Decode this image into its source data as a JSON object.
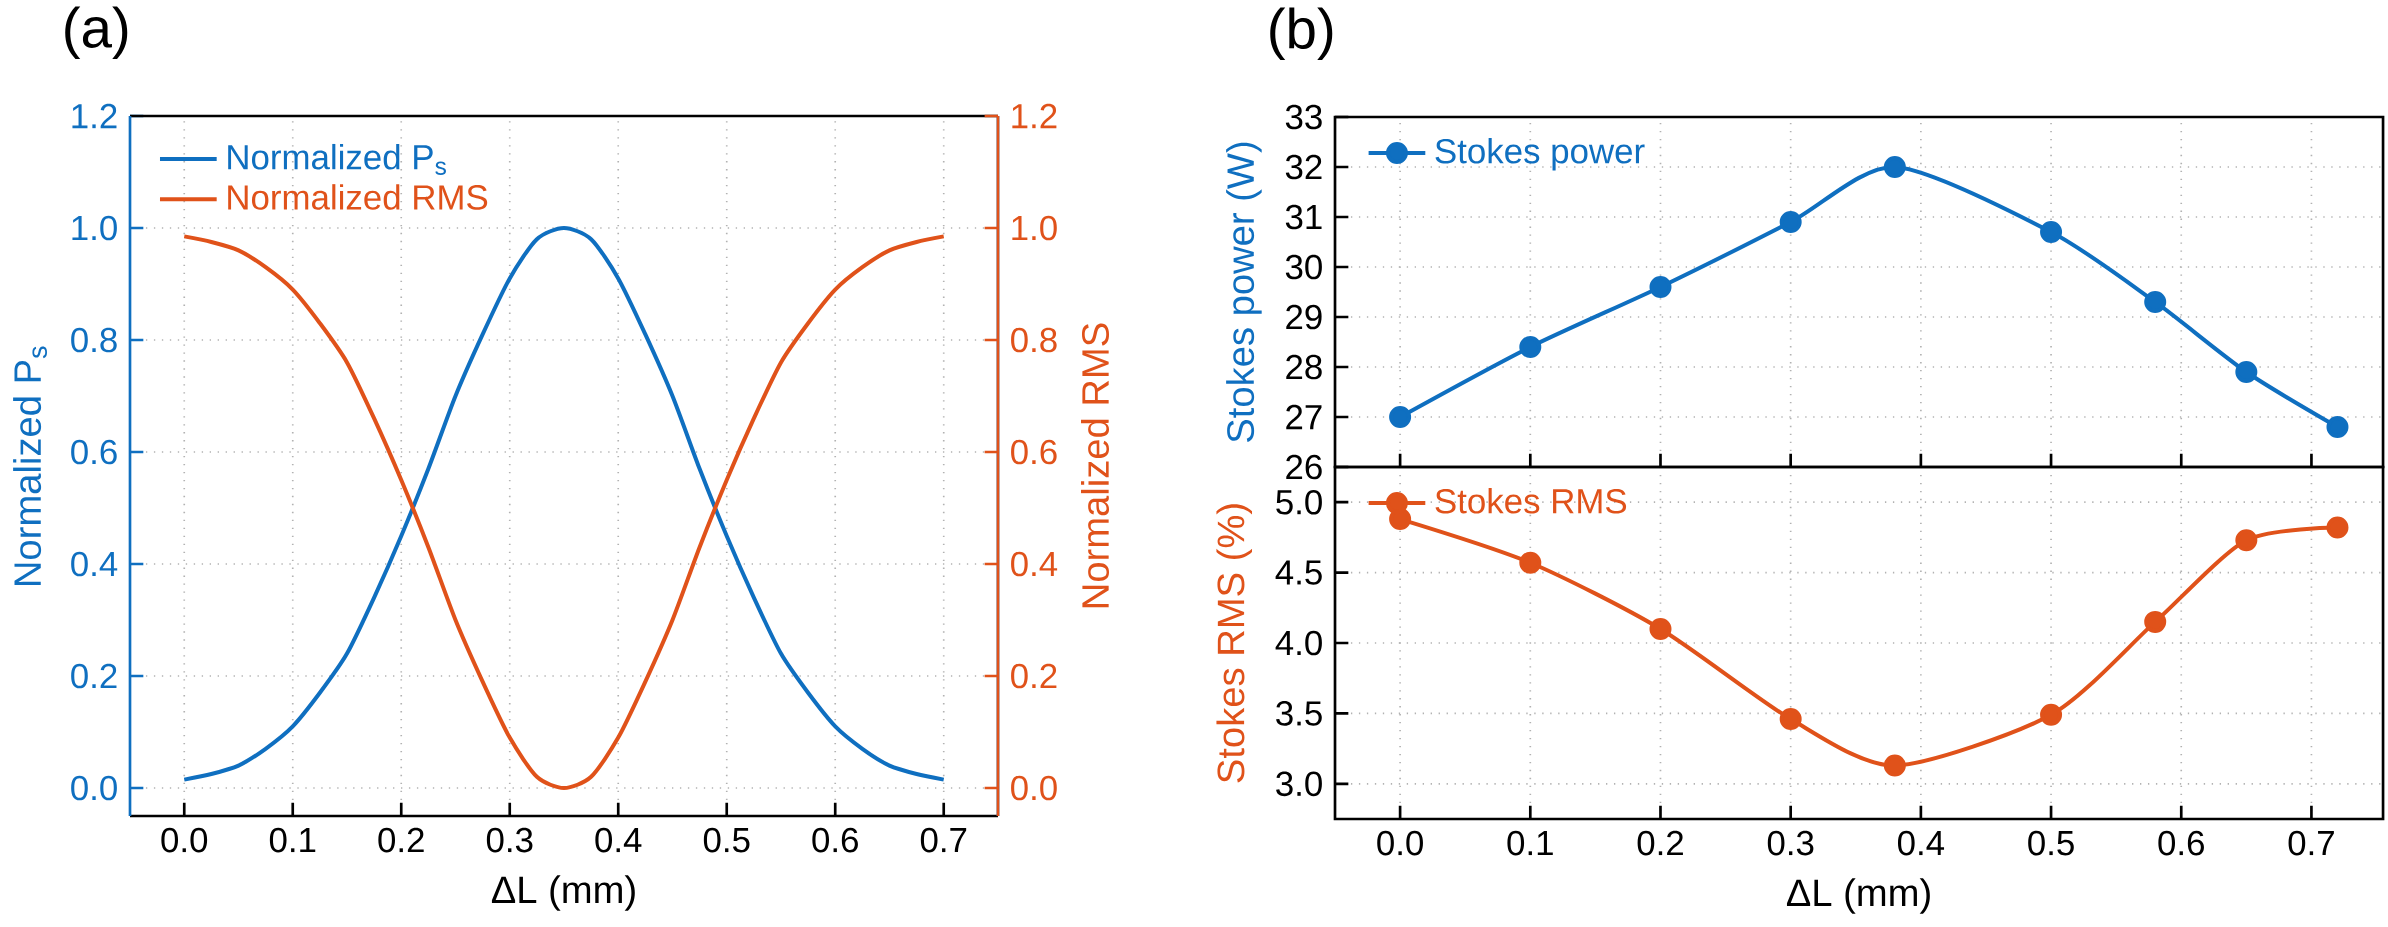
{
  "chart_data": [
    {
      "type": "line",
      "title": "(a)",
      "xlabel": "ΔL (mm)",
      "ylabel": "Normalized P$_{s}$",
      "y2label": "Normalized RMS",
      "x": [
        0,
        0.025,
        0.05,
        0.075,
        0.1,
        0.125,
        0.15,
        0.175,
        0.2,
        0.225,
        0.25,
        0.275,
        0.3,
        0.325,
        0.35,
        0.375,
        0.4,
        0.425,
        0.45,
        0.475,
        0.5,
        0.525,
        0.55,
        0.575,
        0.6,
        0.625,
        0.65,
        0.675,
        0.7
      ],
      "series": [
        {
          "name": "Normalized P$_{s}$",
          "color": "#0f6fc0",
          "values": [
            0.015,
            0.025,
            0.04,
            0.07,
            0.11,
            0.17,
            0.24,
            0.34,
            0.45,
            0.57,
            0.7,
            0.81,
            0.91,
            0.98,
            1.0,
            0.98,
            0.91,
            0.81,
            0.7,
            0.57,
            0.45,
            0.34,
            0.24,
            0.17,
            0.11,
            0.07,
            0.04,
            0.025,
            0.015
          ]
        },
        {
          "name": "Normalized RMS",
          "color": "#e0521a",
          "axis": "y2",
          "values": [
            0.985,
            0.975,
            0.96,
            0.93,
            0.89,
            0.83,
            0.76,
            0.66,
            0.55,
            0.43,
            0.3,
            0.19,
            0.09,
            0.02,
            0.0,
            0.02,
            0.09,
            0.19,
            0.3,
            0.43,
            0.55,
            0.66,
            0.76,
            0.83,
            0.89,
            0.93,
            0.96,
            0.975,
            0.985
          ]
        }
      ],
      "xlim": [
        -0.05,
        0.75
      ],
      "xticks": [
        {
          "value": 0,
          "label": "0.0"
        },
        0.1,
        0.2,
        0.3,
        0.4,
        0.5,
        0.6,
        0.7
      ],
      "ylim": [
        -0.05,
        1.2
      ],
      "yticks": [
        {
          "value": 0,
          "label": "0.0"
        },
        0.2,
        0.4,
        0.6,
        0.8,
        {
          "value": 1,
          "label": "1.0"
        },
        1.2
      ],
      "y2lim": [
        -0.05,
        1.2
      ],
      "y2ticks": [
        {
          "value": 0,
          "label": "0.0"
        },
        0.2,
        0.4,
        0.6,
        0.8,
        {
          "value": 1,
          "label": "1.0"
        },
        1.2
      ],
      "grid": true,
      "legend": "top left"
    },
    {
      "type": "line",
      "title": "(b)",
      "ylabel": "Stokes power (W)",
      "x": [
        0,
        0.1,
        0.2,
        0.3,
        0.38,
        0.5,
        0.58,
        0.65,
        0.72
      ],
      "series": [
        {
          "name": "Stokes power",
          "color": "#0f6fc0",
          "values": [
            27.0,
            28.4,
            29.6,
            30.9,
            32.0,
            30.7,
            29.3,
            27.9,
            26.8
          ]
        }
      ],
      "xlim": [
        -0.05,
        0.755
      ],
      "xticks": [
        0,
        0.1,
        0.2,
        0.3,
        0.4,
        0.5,
        0.6,
        0.7
      ],
      "ylim": [
        26,
        33
      ],
      "yticks": [
        26,
        27,
        28,
        29,
        30,
        31,
        32,
        33
      ],
      "tick_labels": "y",
      "marker": "circle",
      "grid": true,
      "legend": "top left"
    },
    {
      "type": "line",
      "xlabel": "ΔL (mm)",
      "ylabel": "Stokes RMS (%)",
      "x": [
        0,
        0.1,
        0.2,
        0.3,
        0.38,
        0.5,
        0.58,
        0.65,
        0.72
      ],
      "series": [
        {
          "name": "Stokes RMS",
          "color": "#e0521a",
          "values": [
            4.88,
            4.57,
            4.1,
            3.46,
            3.13,
            3.49,
            4.15,
            4.73,
            4.82
          ]
        }
      ],
      "xlim": [
        -0.05,
        0.755
      ],
      "xticks": [
        {
          "value": 0,
          "label": "0.0"
        },
        0.1,
        0.2,
        0.3,
        0.4,
        0.5,
        0.6,
        0.7
      ],
      "ylim": [
        2.75,
        5.25
      ],
      "yticks": [
        {
          "value": 3,
          "label": "3.0"
        },
        3.5,
        {
          "value": 4,
          "label": "4.0"
        },
        4.5,
        {
          "value": 5,
          "label": "5.0"
        }
      ],
      "marker": "circle",
      "grid": true,
      "legend": "top left"
    }
  ]
}
